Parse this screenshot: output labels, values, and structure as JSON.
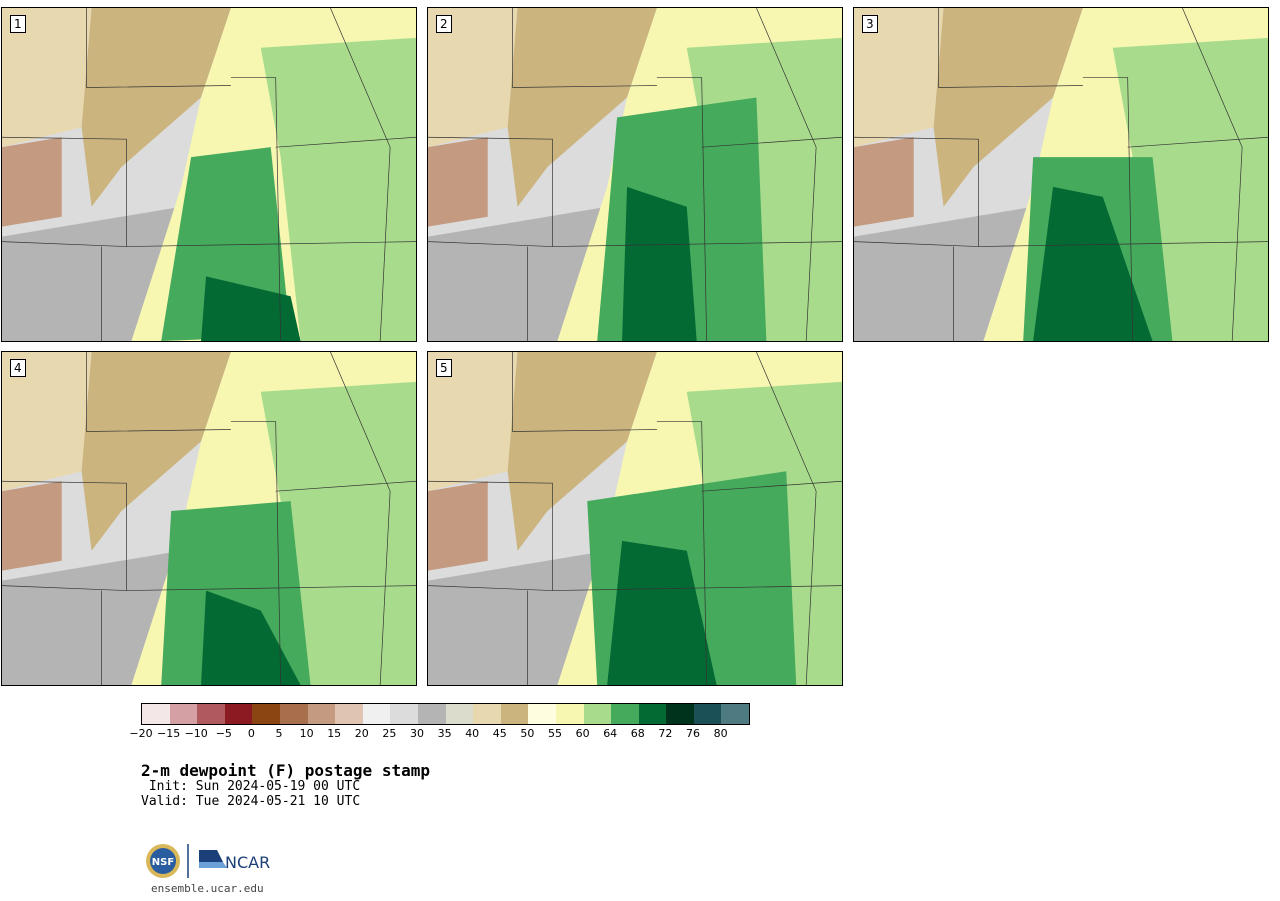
{
  "panels": [
    {
      "label": "1",
      "wet_core": [
        [
          190,
          150
        ],
        [
          270,
          140
        ],
        [
          290,
          330
        ],
        [
          160,
          335
        ]
      ],
      "dark_core": [
        [
          205,
          270
        ],
        [
          290,
          290
        ],
        [
          300,
          335
        ],
        [
          200,
          335
        ]
      ]
    },
    {
      "label": "2",
      "wet_core": [
        [
          190,
          110
        ],
        [
          330,
          90
        ],
        [
          340,
          335
        ],
        [
          170,
          335
        ]
      ],
      "dark_core": [
        [
          200,
          180
        ],
        [
          260,
          200
        ],
        [
          270,
          335
        ],
        [
          195,
          335
        ]
      ]
    },
    {
      "label": "3",
      "wet_core": [
        [
          180,
          150
        ],
        [
          300,
          150
        ],
        [
          320,
          335
        ],
        [
          170,
          335
        ]
      ],
      "dark_core": [
        [
          200,
          180
        ],
        [
          250,
          190
        ],
        [
          300,
          335
        ],
        [
          180,
          335
        ]
      ]
    },
    {
      "label": "4",
      "wet_core": [
        [
          170,
          160
        ],
        [
          290,
          150
        ],
        [
          310,
          335
        ],
        [
          160,
          335
        ]
      ],
      "dark_core": [
        [
          205,
          240
        ],
        [
          260,
          260
        ],
        [
          300,
          335
        ],
        [
          200,
          335
        ]
      ]
    },
    {
      "label": "5",
      "wet_core": [
        [
          160,
          150
        ],
        [
          360,
          120
        ],
        [
          370,
          335
        ],
        [
          170,
          335
        ]
      ],
      "dark_core": [
        [
          195,
          190
        ],
        [
          260,
          200
        ],
        [
          290,
          335
        ],
        [
          180,
          335
        ]
      ]
    }
  ],
  "colorbar": {
    "colors": [
      "#f4e7e7",
      "#d4a0a4",
      "#b05a60",
      "#8b1a22",
      "#8b4513",
      "#a86f4c",
      "#c49a80",
      "#e0c4b2",
      "#f0f0f0",
      "#dcdcdc",
      "#b4b4b4",
      "#dcdccc",
      "#e8d8b0",
      "#cbb47e",
      "#fffde0",
      "#f7f7b2",
      "#a8dc8c",
      "#45aa5c",
      "#046a34",
      "#00331c",
      "#1a5056",
      "#4e7a82"
    ],
    "ticks": [
      "−20",
      "−15",
      "−10",
      "−5",
      "0",
      "5",
      "10",
      "15",
      "20",
      "25",
      "30",
      "35",
      "40",
      "45",
      "50",
      "55",
      "60",
      "64",
      "68",
      "72",
      "76",
      "80"
    ]
  },
  "title": "2-m dewpoint (F) postage stamp",
  "init": " Init: Sun 2024-05-19 00 UTC",
  "valid": "Valid: Tue 2024-05-21 10 UTC",
  "logos": [
    "NSF",
    "NCAR"
  ],
  "url": "ensemble.ucar.edu"
}
